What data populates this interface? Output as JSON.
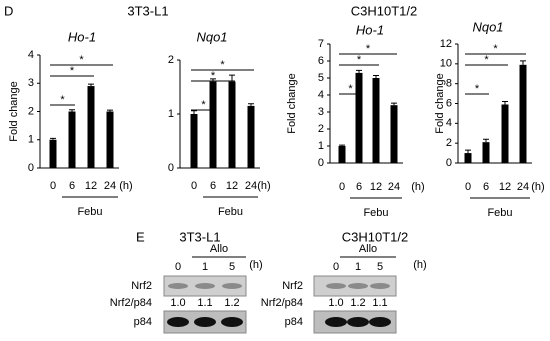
{
  "panel_labels": [
    "D",
    "E"
  ],
  "groups": [
    "3T3-L1",
    "C3H10T1/2"
  ],
  "chart_data": [
    {
      "type": "bar",
      "title": "Ho-1",
      "ylabel": "Fold change",
      "xlabel": "Febu",
      "x_unit": "(h)",
      "categories": [
        "0",
        "6",
        "12",
        "24"
      ],
      "values": [
        1.0,
        2.0,
        2.9,
        2.0
      ],
      "errors": [
        0.05,
        0.06,
        0.07,
        0.05
      ],
      "color": "#000000",
      "ylim": [
        0,
        4
      ],
      "yticks": [
        0,
        1,
        2,
        3,
        4
      ],
      "comparisons": [
        {
          "between": [
            "0",
            "24"
          ],
          "label": "*"
        },
        {
          "between": [
            "0",
            "12"
          ],
          "label": "*"
        },
        {
          "between": [
            "0",
            "6"
          ],
          "label": "*"
        }
      ]
    },
    {
      "type": "bar",
      "title": "Nqo1",
      "xlabel": "Febu",
      "x_unit": "(h)",
      "categories": [
        "0",
        "6",
        "12",
        "24"
      ],
      "values": [
        1.0,
        1.6,
        1.6,
        1.15
      ],
      "errors": [
        0.06,
        0.05,
        0.12,
        0.04
      ],
      "color": "#000000",
      "ylim": [
        0,
        2
      ],
      "yticks": [
        0,
        1,
        2
      ],
      "comparisons": [
        {
          "between": [
            "0",
            "24"
          ],
          "label": "*"
        },
        {
          "between": [
            "0",
            "12"
          ],
          "label": "*"
        },
        {
          "between": [
            "0",
            "6"
          ],
          "label": "*"
        }
      ]
    },
    {
      "type": "bar",
      "title": "Ho-1",
      "ylabel": "Fold change",
      "xlabel": "Febu",
      "x_unit": "(h)",
      "categories": [
        "0",
        "6",
        "12",
        "24"
      ],
      "values": [
        1.0,
        5.3,
        5.0,
        3.4
      ],
      "errors": [
        0.05,
        0.15,
        0.15,
        0.12
      ],
      "color": "#000000",
      "ylim": [
        0,
        7
      ],
      "yticks": [
        0,
        1,
        2,
        3,
        4,
        5,
        6,
        7
      ],
      "comparisons": [
        {
          "between": [
            "0",
            "24"
          ],
          "label": "*"
        },
        {
          "between": [
            "0",
            "12"
          ],
          "label": "*"
        },
        {
          "between": [
            "0",
            "6"
          ],
          "label": "*"
        }
      ]
    },
    {
      "type": "bar",
      "title": "Nqo1",
      "ylabel": "Fold change",
      "xlabel": "Febu",
      "x_unit": "(h)",
      "categories": [
        "0",
        "6",
        "12",
        "24"
      ],
      "values": [
        1.0,
        2.1,
        5.9,
        9.9
      ],
      "errors": [
        0.3,
        0.3,
        0.3,
        0.4
      ],
      "color": "#000000",
      "ylim": [
        0,
        12
      ],
      "yticks": [
        0,
        2,
        4,
        6,
        8,
        10,
        12
      ],
      "comparisons": [
        {
          "between": [
            "0",
            "24"
          ],
          "label": "*"
        },
        {
          "between": [
            "0",
            "12"
          ],
          "label": "*"
        },
        {
          "between": [
            "0",
            "6"
          ],
          "label": "*"
        }
      ]
    }
  ],
  "blots": [
    {
      "title": "3T3-L1",
      "treatment": "Allo",
      "lanes": [
        "0",
        "1",
        "5"
      ],
      "unit": "(h)",
      "band_label": "Nrf2",
      "ratio_label": "Nrf2/p84",
      "ratios": [
        "1.0",
        "1.1",
        "1.2"
      ],
      "control_label": "p84"
    },
    {
      "title": "C3H10T1/2",
      "treatment": "Allo",
      "lanes": [
        "0",
        "1",
        "5"
      ],
      "unit": "(h)",
      "band_label": "Nrf2",
      "ratio_label": "Nrf2/p84",
      "ratios": [
        "1.0",
        "1.2",
        "1.1"
      ],
      "control_label": "p84"
    }
  ]
}
